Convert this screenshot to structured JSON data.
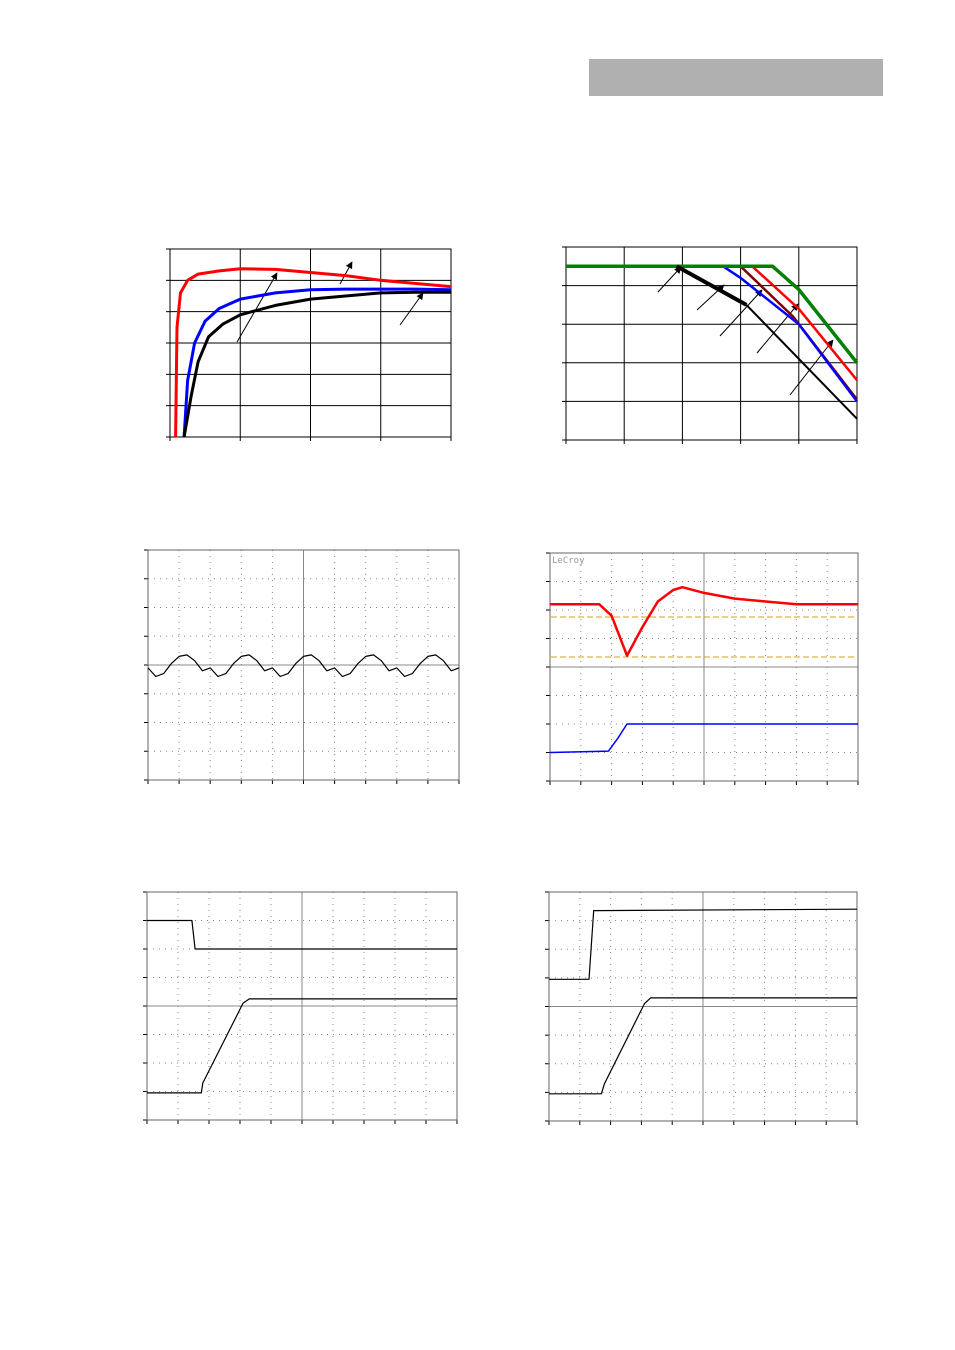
{
  "chart_data": [
    {
      "type": "line",
      "xlim": [
        0,
        4
      ],
      "ylim": [
        0,
        6
      ],
      "xticks": [
        0,
        1,
        2,
        3,
        4
      ],
      "yticks": [
        0,
        1,
        2,
        3,
        4,
        5,
        6
      ],
      "grid": "solid",
      "series": [
        {
          "color": "#ff0000",
          "width": 3,
          "x": [
            0.08,
            0.1,
            0.15,
            0.25,
            0.4,
            0.7,
            1.0,
            1.5,
            2.0,
            2.5,
            3.0,
            3.5,
            4.0
          ],
          "values": [
            0,
            3.5,
            4.6,
            5.0,
            5.2,
            5.3,
            5.37,
            5.35,
            5.25,
            5.15,
            5.0,
            4.9,
            4.8
          ]
        },
        {
          "color": "#0000ff",
          "width": 3,
          "x": [
            0.2,
            0.25,
            0.35,
            0.5,
            0.7,
            1.0,
            1.5,
            2.0,
            2.5,
            3.0,
            3.5,
            4.0
          ],
          "values": [
            0,
            1.8,
            3.0,
            3.7,
            4.1,
            4.4,
            4.6,
            4.7,
            4.72,
            4.72,
            4.72,
            4.7
          ]
        },
        {
          "color": "#000000",
          "width": 3,
          "x": [
            0.2,
            0.3,
            0.4,
            0.55,
            0.75,
            1.0,
            1.5,
            2.0,
            2.5,
            3.0,
            3.5,
            4.0
          ],
          "values": [
            0,
            1.3,
            2.4,
            3.2,
            3.6,
            3.9,
            4.2,
            4.4,
            4.5,
            4.6,
            4.62,
            4.62
          ]
        }
      ]
    },
    {
      "type": "line",
      "xlim": [
        0,
        5
      ],
      "ylim": [
        0,
        5
      ],
      "xticks": [
        0,
        1,
        2,
        3,
        4,
        5
      ],
      "yticks": [
        0,
        1,
        2,
        3,
        4,
        5
      ],
      "grid": "solid",
      "series": [
        {
          "color": "#800000",
          "width": 2.5,
          "x": [
            3.0,
            3.9,
            5
          ],
          "values": [
            4.5,
            3.2,
            1.05
          ]
        },
        {
          "color": "#ff0000",
          "width": 2.5,
          "x": [
            3.2,
            4.0,
            5
          ],
          "values": [
            4.5,
            3.4,
            1.55
          ]
        },
        {
          "color": "#0000ff",
          "width": 2.5,
          "x": [
            2.7,
            3.0,
            4.0,
            5
          ],
          "values": [
            4.5,
            4.2,
            3.0,
            1.0
          ]
        },
        {
          "color": "#000000",
          "width": 2,
          "x": [
            3.1,
            5
          ],
          "values": [
            3.5,
            0.55
          ]
        },
        {
          "color": "#008000",
          "width": 3.5,
          "x": [
            0,
            3.55,
            4,
            5
          ],
          "values": [
            4.5,
            4.5,
            3.9,
            2.0
          ]
        },
        {
          "color": "#000000",
          "width": 4,
          "x": [
            1.9,
            3.1
          ],
          "values": [
            4.5,
            3.5
          ]
        }
      ]
    },
    {
      "type": "line",
      "xlim": [
        0,
        10
      ],
      "ylim": [
        0,
        8
      ],
      "xticks": [
        0,
        1,
        2,
        3,
        4,
        5,
        6,
        7,
        8,
        9,
        10
      ],
      "yticks": [
        0,
        1,
        2,
        3,
        4,
        5,
        6,
        7,
        8
      ],
      "grid": "dotted",
      "series": [
        {
          "color": "#000000",
          "width": 1.2,
          "x": [
            0,
            0.25,
            0.5,
            0.75,
            1,
            1.25,
            1.5,
            1.75,
            2,
            2.25,
            2.5,
            2.75,
            3,
            3.25,
            3.5,
            3.75,
            4,
            4.25,
            4.5,
            4.75,
            5,
            5.25,
            5.5,
            5.75,
            6,
            6.25,
            6.5,
            6.75,
            7,
            7.25,
            7.5,
            7.75,
            8,
            8.25,
            8.5,
            8.75,
            9,
            9.25,
            9.5,
            9.75,
            10
          ],
          "values": [
            3.9,
            3.6,
            3.7,
            4.05,
            4.3,
            4.35,
            4.15,
            3.8,
            3.9,
            3.6,
            3.7,
            4.05,
            4.3,
            4.35,
            4.15,
            3.8,
            3.9,
            3.6,
            3.7,
            4.05,
            4.3,
            4.35,
            4.15,
            3.8,
            3.9,
            3.6,
            3.7,
            4.05,
            4.3,
            4.35,
            4.15,
            3.8,
            3.9,
            3.6,
            3.7,
            4.05,
            4.3,
            4.35,
            4.15,
            3.8,
            3.9
          ]
        }
      ]
    },
    {
      "type": "line",
      "label": "LeCroy",
      "xlim": [
        0,
        10
      ],
      "ylim": [
        0,
        8
      ],
      "xticks": [
        0,
        1,
        2,
        3,
        4,
        5,
        6,
        7,
        8,
        9,
        10
      ],
      "yticks": [
        0,
        1,
        2,
        3,
        4,
        5,
        6,
        7,
        8
      ],
      "grid": "dotted",
      "series": [
        {
          "color": "#ff0000",
          "width": 2.5,
          "x": [
            0,
            1.6,
            2.0,
            2.5,
            3.0,
            3.5,
            4.0,
            4.3,
            5,
            6,
            7,
            8,
            9,
            10
          ],
          "values": [
            6.2,
            6.2,
            5.8,
            4.4,
            5.4,
            6.3,
            6.7,
            6.8,
            6.6,
            6.4,
            6.3,
            6.2,
            6.2,
            6.2
          ]
        },
        {
          "color": "#0000ff",
          "width": 1.5,
          "x": [
            0,
            1.9,
            2.2,
            2.5,
            10
          ],
          "values": [
            1.0,
            1.05,
            1.5,
            2.0,
            2.0
          ]
        }
      ]
    },
    {
      "type": "line",
      "xlim": [
        0,
        10
      ],
      "ylim": [
        0,
        8
      ],
      "xticks": [
        0,
        1,
        2,
        3,
        4,
        5,
        6,
        7,
        8,
        9,
        10
      ],
      "yticks": [
        0,
        1,
        2,
        3,
        4,
        5,
        6,
        7,
        8
      ],
      "grid": "dotted",
      "series": [
        {
          "color": "#000000",
          "width": 1.2,
          "x": [
            0,
            1.45,
            1.55,
            10
          ],
          "values": [
            7.0,
            7.0,
            6.0,
            6.0
          ]
        },
        {
          "color": "#000000",
          "width": 1.2,
          "x": [
            0,
            1.75,
            1.8,
            3.1,
            3.3,
            10
          ],
          "values": [
            0.95,
            0.95,
            1.3,
            4.1,
            4.25,
            4.25
          ]
        }
      ]
    },
    {
      "type": "line",
      "xlim": [
        0,
        10
      ],
      "ylim": [
        0,
        8
      ],
      "xticks": [
        0,
        1,
        2,
        3,
        4,
        5,
        6,
        7,
        8,
        9,
        10
      ],
      "yticks": [
        0,
        1,
        2,
        3,
        4,
        5,
        6,
        7,
        8
      ],
      "grid": "dotted",
      "series": [
        {
          "color": "#000000",
          "width": 1.2,
          "x": [
            0,
            1.3,
            1.45,
            1.55,
            10
          ],
          "values": [
            4.95,
            4.95,
            7.35,
            7.35,
            7.4
          ]
        },
        {
          "color": "#000000",
          "width": 1.2,
          "x": [
            0,
            1.7,
            1.8,
            3.1,
            3.3,
            10
          ],
          "values": [
            0.95,
            0.95,
            1.3,
            4.1,
            4.3,
            4.3
          ]
        }
      ]
    }
  ]
}
